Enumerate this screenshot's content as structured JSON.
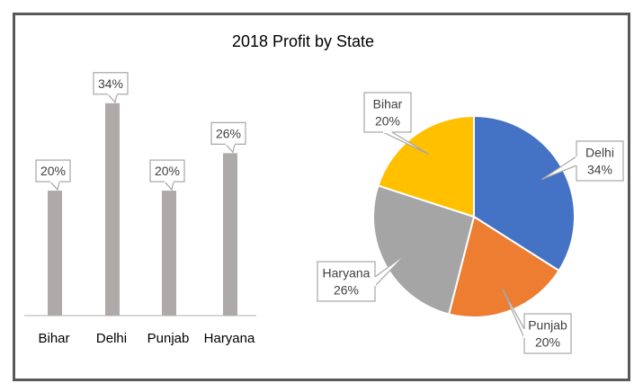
{
  "title": "2018 Profit by State",
  "colors": {
    "bar": "#aeaaaa",
    "frame": "#595959",
    "axis": "#bfbfbf",
    "slices": [
      "#4472c4",
      "#ed7d31",
      "#a5a5a5",
      "#ffc000"
    ]
  },
  "chart_data": [
    {
      "type": "bar",
      "title": "2018 Profit by State",
      "categories": [
        "Bihar",
        "Delhi",
        "Punjab",
        "Haryana"
      ],
      "values": [
        20,
        34,
        20,
        26
      ],
      "value_labels": [
        "20%",
        "34%",
        "20%",
        "26%"
      ],
      "ylim": [
        0,
        38
      ],
      "grid": false,
      "legend": "none"
    },
    {
      "type": "pie",
      "categories": [
        "Delhi",
        "Punjab",
        "Haryana",
        "Bihar"
      ],
      "values": [
        34,
        20,
        26,
        20
      ],
      "value_labels": [
        "34%",
        "20%",
        "26%",
        "20%"
      ],
      "start": "12 o'clock, clockwise",
      "legend": "none"
    }
  ]
}
